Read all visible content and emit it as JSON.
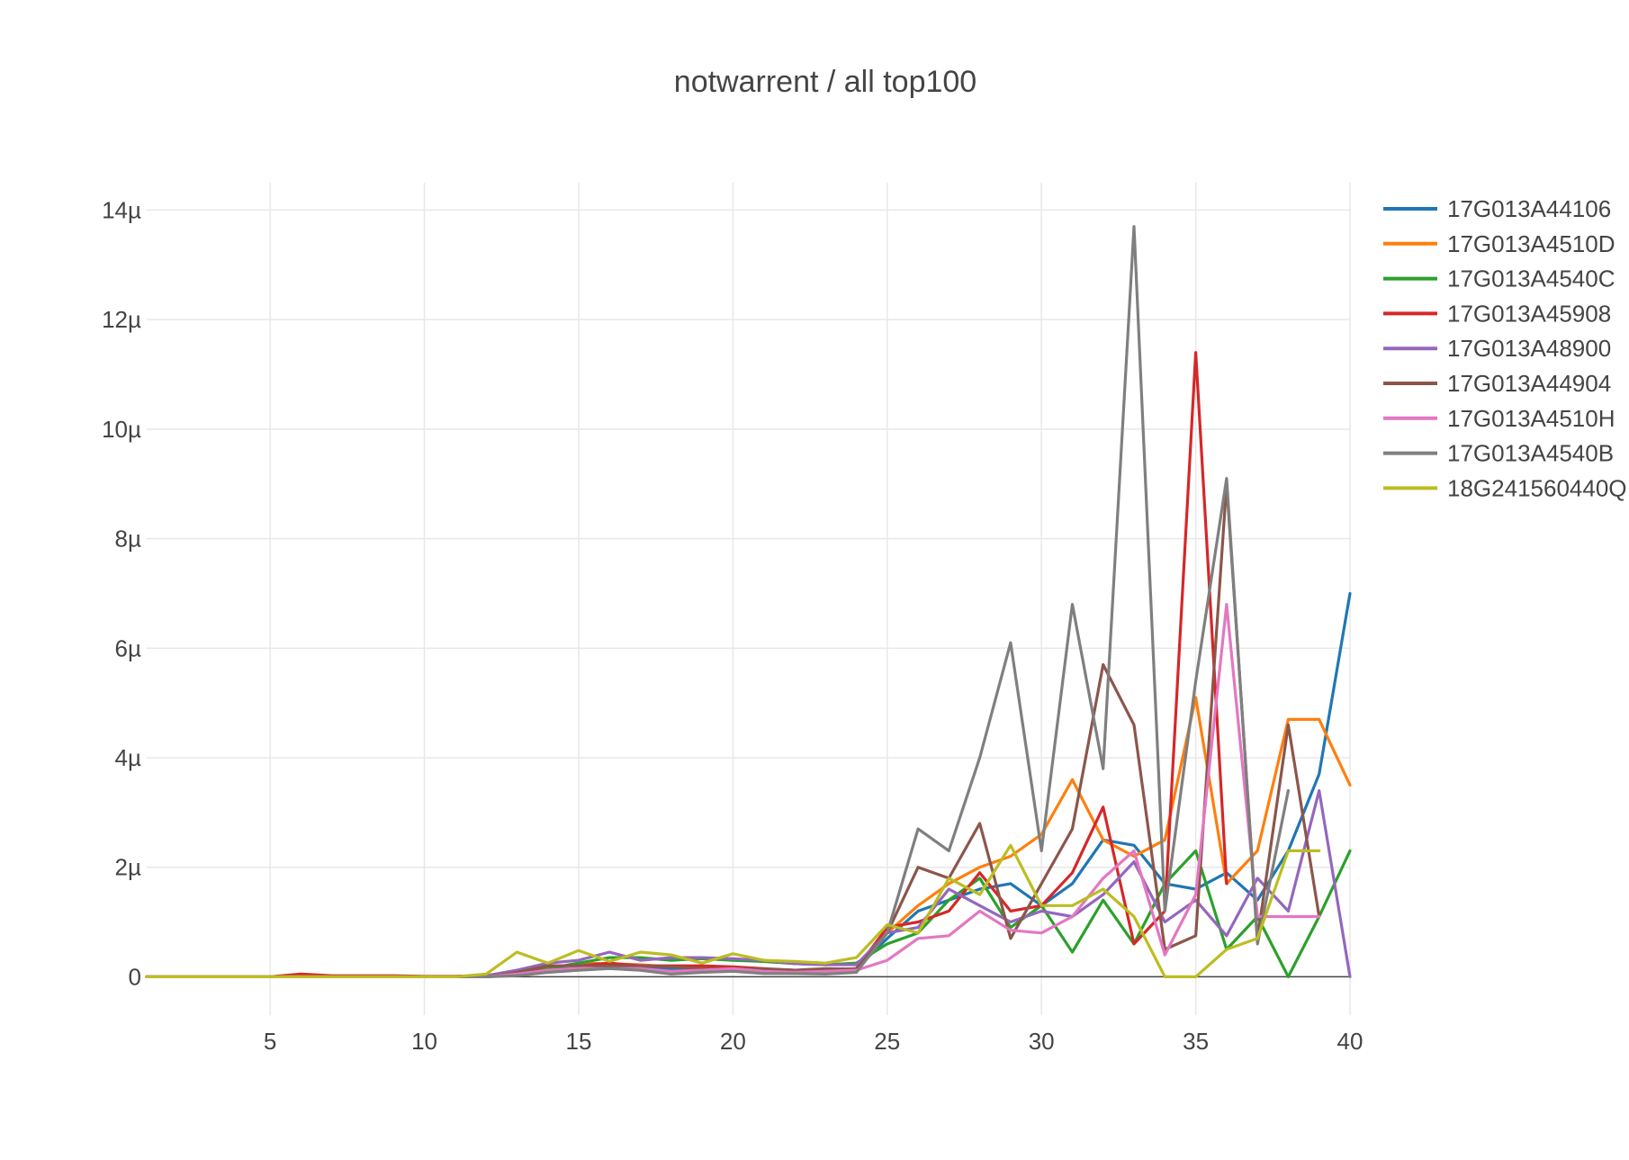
{
  "chart_data": {
    "type": "line",
    "title": "notwarrent / all top100",
    "xlabel": "",
    "ylabel": "",
    "xlim": [
      1,
      40
    ],
    "ylim": [
      -7e-07,
      1.45e-05
    ],
    "x_ticks": [
      5,
      10,
      15,
      20,
      25,
      30,
      35,
      40
    ],
    "y_ticks": [
      0,
      2e-06,
      4e-06,
      6e-06,
      8e-06,
      1e-05,
      1.2e-05,
      1.4e-05
    ],
    "y_tick_labels": [
      "0",
      "2µ",
      "4µ",
      "6µ",
      "8µ",
      "10µ",
      "12µ",
      "14µ"
    ],
    "grid": true,
    "legend_position": "right",
    "x": [
      1,
      2,
      3,
      4,
      5,
      6,
      7,
      8,
      9,
      10,
      11,
      12,
      13,
      14,
      15,
      16,
      17,
      18,
      19,
      20,
      21,
      22,
      23,
      24,
      25,
      26,
      27,
      28,
      29,
      30,
      31,
      32,
      33,
      34,
      35,
      36,
      37,
      38,
      39,
      40
    ],
    "series": [
      {
        "name": "17G013A44106",
        "color": "#1f77b4",
        "values": [
          0,
          0,
          0,
          0,
          0,
          0,
          0,
          0,
          0,
          0,
          0,
          0,
          3e-08,
          1.5e-07,
          1.4e-07,
          1.6e-07,
          1.5e-07,
          1.4e-07,
          1.5e-07,
          1.6e-07,
          1.4e-07,
          1.2e-07,
          1.2e-07,
          1.5e-07,
          7e-07,
          1.2e-06,
          1.4e-06,
          1.6e-06,
          1.7e-06,
          1.3e-06,
          1.7e-06,
          2.5e-06,
          2.4e-06,
          1.7e-06,
          1.6e-06,
          1.9e-06,
          1.4e-06,
          2.3e-06,
          3.7e-06,
          7e-06
        ]
      },
      {
        "name": "17G013A4510D",
        "color": "#ff7f0e",
        "values": [
          0,
          0,
          0,
          0,
          0,
          0,
          0,
          0,
          0,
          0,
          0,
          0,
          5e-08,
          1.5e-07,
          2.5e-07,
          2.4e-07,
          2.2e-07,
          1.8e-07,
          2e-07,
          1e-07,
          8e-08,
          6e-08,
          8e-08,
          1.2e-07,
          8e-07,
          1.3e-06,
          1.7e-06,
          2e-06,
          2.2e-06,
          2.6e-06,
          3.6e-06,
          2.5e-06,
          2.2e-06,
          2.5e-06,
          5.1e-06,
          1.7e-06,
          2.3e-06,
          4.7e-06,
          4.7e-06,
          3.5e-06
        ]
      },
      {
        "name": "17G013A4540C",
        "color": "#2ca02c",
        "values": [
          0,
          0,
          0,
          0,
          0,
          0,
          0,
          0,
          0,
          0,
          0,
          0,
          5e-08,
          1.5e-07,
          2.5e-07,
          3.5e-07,
          3.5e-07,
          3e-07,
          3.3e-07,
          3e-07,
          2.8e-07,
          2.4e-07,
          2.2e-07,
          2.5e-07,
          6e-07,
          8e-07,
          1.4e-06,
          1.8e-06,
          9e-07,
          1.3e-06,
          4.5e-07,
          1.4e-06,
          6e-07,
          1.7e-06,
          2.3e-06,
          5e-07,
          1.1e-06,
          0,
          1.1e-06,
          2.3e-06
        ]
      },
      {
        "name": "17G013A45908",
        "color": "#d62728",
        "values": [
          0,
          0,
          0,
          0,
          0,
          5e-08,
          2e-08,
          2e-08,
          2e-08,
          1e-08,
          1e-08,
          2e-08,
          5e-08,
          2e-07,
          2e-07,
          2.5e-07,
          2e-07,
          2e-07,
          2e-07,
          1.8e-07,
          1.5e-07,
          1.2e-07,
          1.2e-07,
          1.5e-07,
          9e-07,
          1e-06,
          1.2e-06,
          1.9e-06,
          1.2e-06,
          1.3e-06,
          1.9e-06,
          3.1e-06,
          6e-07,
          1.2e-06,
          1.14e-05,
          1.7e-06,
          null,
          null,
          null,
          null
        ]
      },
      {
        "name": "17G013A48900",
        "color": "#9467bd",
        "values": [
          0,
          0,
          0,
          0,
          0,
          0,
          0,
          0,
          0,
          0,
          0,
          2e-08,
          1.2e-07,
          2.5e-07,
          3e-07,
          4.5e-07,
          3e-07,
          3.5e-07,
          3.5e-07,
          3.3e-07,
          3e-07,
          2.4e-07,
          2.2e-07,
          2.2e-07,
          8e-07,
          9e-07,
          1.6e-06,
          1.3e-06,
          1e-06,
          1.2e-06,
          1.1e-06,
          1.5e-06,
          2.1e-06,
          1e-06,
          1.4e-06,
          7.5e-07,
          1.8e-06,
          1.2e-06,
          3.4e-06,
          0
        ]
      },
      {
        "name": "17G013A44904",
        "color": "#8c564b",
        "values": [
          0,
          0,
          0,
          0,
          0,
          0,
          0,
          0,
          0,
          0,
          0,
          0,
          8e-08,
          2e-07,
          2e-07,
          2e-07,
          2e-07,
          1.8e-07,
          1.5e-07,
          1.5e-07,
          1.4e-07,
          1.2e-07,
          1.5e-07,
          1.4e-07,
          8e-07,
          2e-06,
          1.8e-06,
          2.8e-06,
          7e-07,
          1.7e-06,
          2.7e-06,
          5.7e-06,
          4.6e-06,
          5e-07,
          7.5e-07,
          9e-06,
          7e-07,
          4.6e-06,
          1.1e-06,
          null
        ]
      },
      {
        "name": "17G013A4510H",
        "color": "#e377c2",
        "values": [
          0,
          0,
          0,
          0,
          0,
          0,
          0,
          0,
          0,
          0,
          0,
          0,
          5e-08,
          1.2e-07,
          1.5e-07,
          1.5e-07,
          1.5e-07,
          1e-07,
          1.2e-07,
          1.5e-07,
          1e-07,
          8e-08,
          1e-07,
          1.2e-07,
          3e-07,
          7e-07,
          7.5e-07,
          1.2e-06,
          8.5e-07,
          8e-07,
          1.1e-06,
          1.8e-06,
          2.3e-06,
          4e-07,
          1.5e-06,
          6.8e-06,
          1.1e-06,
          1.1e-06,
          1.1e-06,
          null
        ]
      },
      {
        "name": "17G013A4540B",
        "color": "#7f7f7f",
        "values": [
          0,
          0,
          0,
          0,
          0,
          0,
          0,
          0,
          0,
          0,
          0,
          0,
          2e-08,
          8e-08,
          1.2e-07,
          1.5e-07,
          1.2e-07,
          5e-08,
          8e-08,
          1e-07,
          6e-08,
          6e-08,
          5e-08,
          8e-08,
          8e-07,
          2.7e-06,
          2.3e-06,
          4e-06,
          6.1e-06,
          2.3e-06,
          6.8e-06,
          3.8e-06,
          1.37e-05,
          1.2e-06,
          5.4e-06,
          9.1e-06,
          6e-07,
          3.4e-06,
          null,
          null
        ]
      },
      {
        "name": "18G241560440Q",
        "color": "#bcbd22",
        "values": [
          0,
          0,
          0,
          0,
          0,
          0,
          0,
          0,
          0,
          0,
          0,
          5e-08,
          4.5e-07,
          2.5e-07,
          4.8e-07,
          2.8e-07,
          4.5e-07,
          4e-07,
          2.5e-07,
          4.2e-07,
          3e-07,
          2.8e-07,
          2.5e-07,
          3.5e-07,
          9.5e-07,
          8e-07,
          1.8e-06,
          1.5e-06,
          2.4e-06,
          1.3e-06,
          1.3e-06,
          1.6e-06,
          1.1e-06,
          0,
          0,
          5e-07,
          7e-07,
          2.3e-06,
          2.3e-06,
          null
        ]
      }
    ],
    "legend_visible_labels": [
      "17G013A44106",
      "17G013A4510D",
      "17G013A4540C",
      "17G013A45908",
      "17G013A48900",
      "17G013A44904",
      "17G013A4510H",
      "17G013A4540B",
      "18G241560440Q"
    ]
  }
}
